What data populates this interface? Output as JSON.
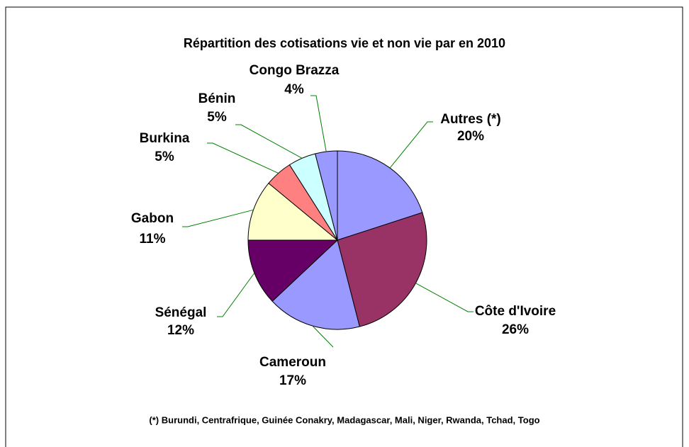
{
  "chart_data": {
    "type": "pie",
    "title": "Répartition des cotisations vie et non vie par en 2010",
    "categories": [
      "Autres (*)",
      "Côte d'Ivoire",
      "Cameroun",
      "Sénégal",
      "Gabon",
      "Burkina",
      "Bénin",
      "Congo Brazza"
    ],
    "values": [
      20,
      26,
      17,
      12,
      11,
      5,
      5,
      4
    ],
    "value_labels": [
      "20%",
      "26%",
      "17%",
      "12%",
      "11%",
      "5%",
      "5%",
      "4%"
    ],
    "colors": [
      "#9999ff",
      "#993366",
      "#9999ff",
      "#660066",
      "#ffffcc",
      "#ff8080",
      "#ccffff",
      "#9999ff"
    ],
    "footnote": "(*) Burundi, Centrafrique, Guinée Conakry, Madagascar, Mali, Niger, Rwanda, Tchad, Togo"
  }
}
